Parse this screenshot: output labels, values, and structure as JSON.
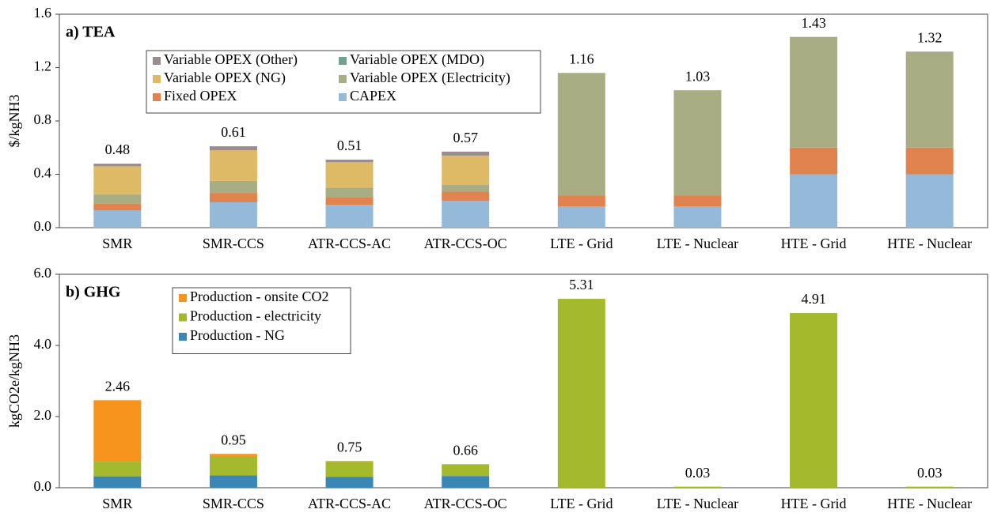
{
  "chart_data": [
    {
      "type": "stacked_bar",
      "title": "a) TEA",
      "y_label": "$/kgNH3",
      "categories": [
        "SMR",
        "SMR-CCS",
        "ATR-CCS-AC",
        "ATR-CCS-OC",
        "LTE - Grid",
        "LTE - Nuclear",
        "HTE - Grid",
        "HTE - Nuclear"
      ],
      "series": [
        {
          "name": "CAPEX",
          "color": "#95b9d8",
          "values": [
            0.13,
            0.19,
            0.17,
            0.2,
            0.16,
            0.16,
            0.4,
            0.4
          ]
        },
        {
          "name": "Fixed OPEX",
          "color": "#e0834e",
          "values": [
            0.05,
            0.07,
            0.06,
            0.07,
            0.08,
            0.08,
            0.2,
            0.2
          ]
        },
        {
          "name": "Variable OPEX (Electricity)",
          "color": "#a8ad83",
          "values": [
            0.07,
            0.09,
            0.07,
            0.05,
            0.92,
            0.79,
            0.83,
            0.72
          ]
        },
        {
          "name": "Variable OPEX (NG)",
          "color": "#dfba66",
          "values": [
            0.21,
            0.23,
            0.19,
            0.22,
            0,
            0,
            0,
            0
          ]
        },
        {
          "name": "Variable OPEX (MDO)",
          "color": "#6fa293",
          "values": [
            0,
            0,
            0,
            0,
            0,
            0,
            0,
            0
          ]
        },
        {
          "name": "Variable OPEX (Other)",
          "color": "#9a8d90",
          "values": [
            0.02,
            0.03,
            0.02,
            0.03,
            0,
            0,
            0,
            0
          ]
        }
      ],
      "totals": [
        0.48,
        0.61,
        0.51,
        0.57,
        1.16,
        1.03,
        1.43,
        1.32
      ],
      "ylim": [
        0,
        1.6
      ],
      "yticks": [
        {
          "value": 0,
          "label": "0.0"
        },
        0.4,
        0.8,
        1.2,
        1.6
      ],
      "legend": "upper left",
      "legend_columns": 2,
      "grid": false
    },
    {
      "type": "stacked_bar",
      "title": "b) GHG",
      "y_label": "kgCO2e/kgNH3",
      "categories": [
        "SMR",
        "SMR-CCS",
        "ATR-CCS-AC",
        "ATR-CCS-OC",
        "LTE - Grid",
        "LTE - Nuclear",
        "HTE - Grid",
        "HTE - Nuclear"
      ],
      "series": [
        {
          "name": "Production - NG",
          "color": "#3a87b5",
          "values": [
            0.32,
            0.35,
            0.3,
            0.33,
            0,
            0,
            0,
            0
          ]
        },
        {
          "name": "Production - electricity",
          "color": "#a4b92b",
          "values": [
            0.41,
            0.54,
            0.43,
            0.33,
            5.31,
            0.03,
            4.91,
            0.03
          ]
        },
        {
          "name": "Production - onsite CO2",
          "color": "#f7941d",
          "values": [
            1.73,
            0.06,
            0.02,
            0,
            0,
            0,
            0,
            0
          ]
        }
      ],
      "totals": [
        2.46,
        0.95,
        0.75,
        0.66,
        5.31,
        0.03,
        4.91,
        0.03
      ],
      "ylim": [
        0,
        6
      ],
      "yticks": [
        {
          "value": 0,
          "label": "0.0"
        },
        {
          "value": 2,
          "label": "2.0"
        },
        {
          "value": 4,
          "label": "4.0"
        },
        {
          "value": 6,
          "label": "6.0"
        }
      ],
      "legend": "upper left",
      "legend_columns": 1,
      "grid": false
    }
  ]
}
